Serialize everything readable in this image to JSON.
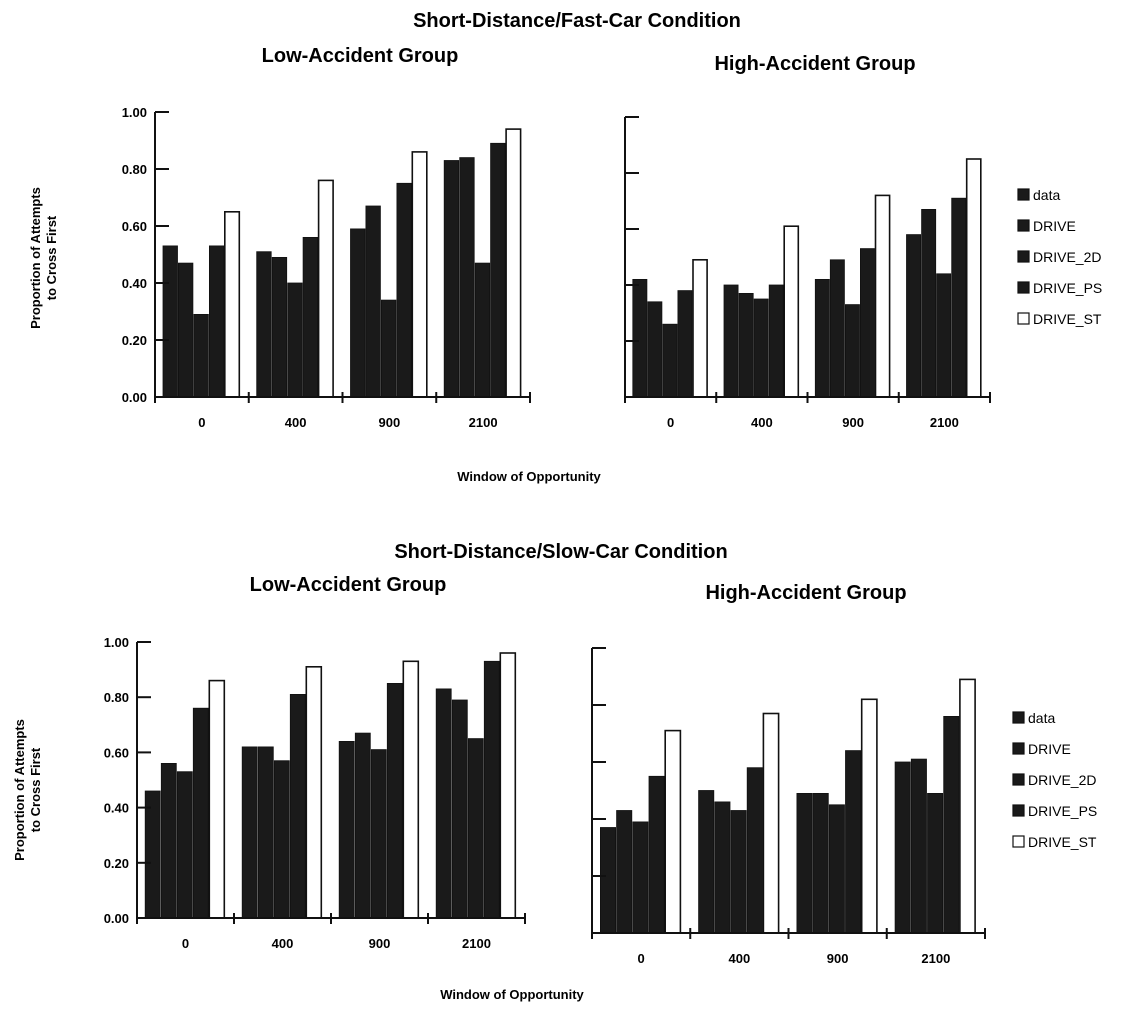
{
  "conditions": [
    {
      "title": "Short-Distance/Fast-Car Condition",
      "xlabel": "Window of Opportunity",
      "ylabel_lines": [
        "Proportion of Attempts",
        "to Cross First"
      ],
      "legend": [
        "data",
        "DRIVE",
        "DRIVE_2D",
        "DRIVE_PS",
        "DRIVE_ST"
      ]
    },
    {
      "title": "Short-Distance/Slow-Car Condition",
      "xlabel": "Window of Opportunity",
      "ylabel_lines": [
        "Proportion of Attempts",
        "to Cross First"
      ],
      "legend": [
        "data",
        "DRIVE",
        "DRIVE_2D",
        "DRIVE_PS",
        "DRIVE_ST"
      ]
    }
  ],
  "colors": {
    "filled": "#1a1a1a",
    "hollow": "#ffffff",
    "stroke": "#111111"
  },
  "chart_data": [
    {
      "type": "bar",
      "title": "Low-Accident Group",
      "xlabel": "Window of Opportunity",
      "ylabel": "Proportion of Attempts to Cross First",
      "categories": [
        "0",
        "400",
        "900",
        "2100"
      ],
      "yticks": [
        "0.00",
        "0.20",
        "0.40",
        "0.60",
        "0.80",
        "1.00"
      ],
      "ylim": [
        0,
        1
      ],
      "series": [
        {
          "name": "data",
          "values": [
            0.53,
            0.51,
            0.59,
            0.83
          ],
          "fill": "filled"
        },
        {
          "name": "DRIVE",
          "values": [
            0.47,
            0.49,
            0.67,
            0.84
          ],
          "fill": "filled"
        },
        {
          "name": "DRIVE_2D",
          "values": [
            0.29,
            0.4,
            0.34,
            0.47
          ],
          "fill": "filled"
        },
        {
          "name": "DRIVE_PS",
          "values": [
            0.53,
            0.56,
            0.75,
            0.89
          ],
          "fill": "filled"
        },
        {
          "name": "DRIVE_ST",
          "values": [
            0.65,
            0.76,
            0.86,
            0.94
          ],
          "fill": "hollow"
        }
      ]
    },
    {
      "type": "bar",
      "title": "High-Accident Group",
      "categories": [
        "0",
        "400",
        "900",
        "2100"
      ],
      "yticks": [
        "",
        "",
        "",
        "",
        "",
        ""
      ],
      "ylim": [
        0,
        1
      ],
      "series": [
        {
          "name": "data",
          "values": [
            0.42,
            0.4,
            0.42,
            0.58
          ],
          "fill": "filled"
        },
        {
          "name": "DRIVE",
          "values": [
            0.34,
            0.37,
            0.49,
            0.67
          ],
          "fill": "filled"
        },
        {
          "name": "DRIVE_2D",
          "values": [
            0.26,
            0.35,
            0.33,
            0.44
          ],
          "fill": "filled"
        },
        {
          "name": "DRIVE_PS",
          "values": [
            0.38,
            0.4,
            0.53,
            0.71
          ],
          "fill": "filled"
        },
        {
          "name": "DRIVE_ST",
          "values": [
            0.49,
            0.61,
            0.72,
            0.85
          ],
          "fill": "hollow"
        }
      ]
    },
    {
      "type": "bar",
      "title": "Low-Accident Group",
      "xlabel": "Window of Opportunity",
      "ylabel": "Proportion of Attempts to Cross First",
      "categories": [
        "0",
        "400",
        "900",
        "2100"
      ],
      "yticks": [
        "0.00",
        "0.20",
        "0.40",
        "0.60",
        "0.80",
        "1.00"
      ],
      "ylim": [
        0,
        1
      ],
      "series": [
        {
          "name": "data",
          "values": [
            0.46,
            0.62,
            0.64,
            0.83
          ],
          "fill": "filled"
        },
        {
          "name": "DRIVE",
          "values": [
            0.56,
            0.62,
            0.67,
            0.79
          ],
          "fill": "filled"
        },
        {
          "name": "DRIVE_2D",
          "values": [
            0.53,
            0.57,
            0.61,
            0.65
          ],
          "fill": "filled"
        },
        {
          "name": "DRIVE_PS",
          "values": [
            0.76,
            0.81,
            0.85,
            0.93
          ],
          "fill": "filled"
        },
        {
          "name": "DRIVE_ST",
          "values": [
            0.86,
            0.91,
            0.93,
            0.96
          ],
          "fill": "hollow"
        }
      ]
    },
    {
      "type": "bar",
      "title": "High-Accident Group",
      "categories": [
        "0",
        "400",
        "900",
        "2100"
      ],
      "yticks": [
        "",
        "",
        "",
        "",
        "",
        ""
      ],
      "ylim": [
        0,
        1
      ],
      "series": [
        {
          "name": "data",
          "values": [
            0.37,
            0.5,
            0.49,
            0.6
          ],
          "fill": "filled"
        },
        {
          "name": "DRIVE",
          "values": [
            0.43,
            0.46,
            0.49,
            0.61
          ],
          "fill": "filled"
        },
        {
          "name": "DRIVE_2D",
          "values": [
            0.39,
            0.43,
            0.45,
            0.49
          ],
          "fill": "filled"
        },
        {
          "name": "DRIVE_PS",
          "values": [
            0.55,
            0.58,
            0.64,
            0.76
          ],
          "fill": "filled"
        },
        {
          "name": "DRIVE_ST",
          "values": [
            0.71,
            0.77,
            0.82,
            0.89
          ],
          "fill": "hollow"
        }
      ]
    }
  ]
}
